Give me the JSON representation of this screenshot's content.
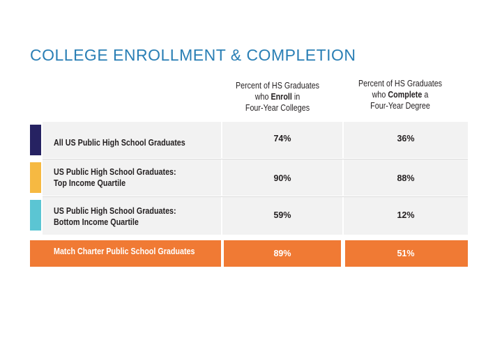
{
  "title": "COLLEGE ENROLLMENT & COMPLETION",
  "columns": {
    "enroll": {
      "line1": "Percent of HS Graduates",
      "pre": "who ",
      "bold": "Enroll",
      "post": " in",
      "line3": "Four-Year Colleges"
    },
    "complete": {
      "line1": "Percent of HS Graduates",
      "pre": "who ",
      "bold": "Complete",
      "post": " a",
      "line3": "Four-Year Degree"
    }
  },
  "colors": {
    "title": "#2a7fb5",
    "all_us": "#262262",
    "top_quartile": "#f6b942",
    "bottom_quartile": "#5bc5d3",
    "match": "#f07a34",
    "cell_bg": "#f2f2f2"
  },
  "chart_data": {
    "type": "table",
    "title": "COLLEGE ENROLLMENT & COMPLETION",
    "columns": [
      "Percent of HS Graduates who Enroll in Four-Year Colleges",
      "Percent of HS Graduates who Complete a Four-Year Degree"
    ],
    "rows": [
      {
        "line1": "All US Public High School Graduates",
        "line2": "",
        "enroll": "74%",
        "complete": "36%",
        "color": "#262262"
      },
      {
        "line1": "US Public High School Graduates:",
        "line2": "Top Income Quartile",
        "enroll": "90%",
        "complete": "88%",
        "color": "#f6b942"
      },
      {
        "line1": "US Public High School Graduates:",
        "line2": "Bottom Income Quartile",
        "enroll": "59%",
        "complete": "12%",
        "color": "#5bc5d3"
      },
      {
        "line1": "Match Charter Public School Graduates",
        "line2": "",
        "enroll": "89%",
        "complete": "51%",
        "color": "#f07a34"
      }
    ]
  }
}
